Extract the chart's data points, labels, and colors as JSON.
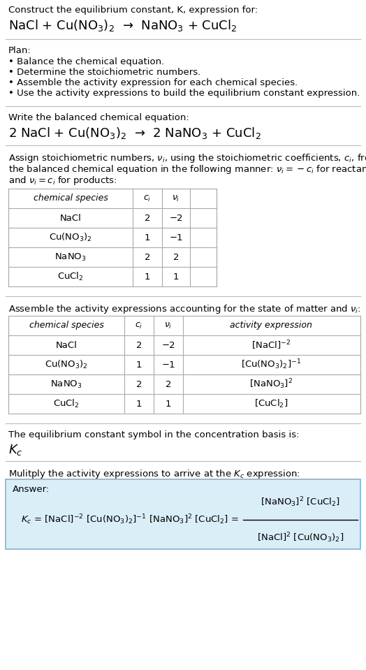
{
  "title_line1": "Construct the equilibrium constant, K, expression for:",
  "title_line2": "NaCl + Cu(NO$_3$)$_2$  →  NaNO$_3$ + CuCl$_2$",
  "plan_header": "Plan:",
  "plan_items": [
    "• Balance the chemical equation.",
    "• Determine the stoichiometric numbers.",
    "• Assemble the activity expression for each chemical species.",
    "• Use the activity expressions to build the equilibrium constant expression."
  ],
  "balanced_header": "Write the balanced chemical equation:",
  "balanced_eq": "2 NaCl + Cu(NO$_3$)$_2$  →  2 NaNO$_3$ + CuCl$_2$",
  "stoich_header_lines": [
    "Assign stoichiometric numbers, $\\nu_i$, using the stoichiometric coefficients, $c_i$, from",
    "the balanced chemical equation in the following manner: $\\nu_i = -c_i$ for reactants",
    "and $\\nu_i = c_i$ for products:"
  ],
  "table1_cols": [
    "chemical species",
    "$c_i$",
    "$\\nu_i$"
  ],
  "table1_rows": [
    [
      "NaCl",
      "2",
      "−2"
    ],
    [
      "Cu(NO$_3$)$_2$",
      "1",
      "−1"
    ],
    [
      "NaNO$_3$",
      "2",
      "2"
    ],
    [
      "CuCl$_2$",
      "1",
      "1"
    ]
  ],
  "activity_header": "Assemble the activity expressions accounting for the state of matter and $\\nu_i$:",
  "table2_cols": [
    "chemical species",
    "$c_i$",
    "$\\nu_i$",
    "activity expression"
  ],
  "table2_rows": [
    [
      "NaCl",
      "2",
      "−2",
      "[NaCl]$^{-2}$"
    ],
    [
      "Cu(NO$_3$)$_2$",
      "1",
      "−1",
      "[Cu(NO$_3$)$_2$]$^{-1}$"
    ],
    [
      "NaNO$_3$",
      "2",
      "2",
      "[NaNO$_3$]$^2$"
    ],
    [
      "CuCl$_2$",
      "1",
      "1",
      "[CuCl$_2$]"
    ]
  ],
  "kc_text1": "The equilibrium constant symbol in the concentration basis is:",
  "kc_symbol": "$K_c$",
  "multiply_header": "Mulitply the activity expressions to arrive at the $K_c$ expression:",
  "answer_label": "Answer:",
  "answer_eq_left": "$K_c$ = [NaCl]$^{-2}$ [Cu(NO$_3$)$_2$]$^{-1}$ [NaNO$_3$]$^2$ [CuCl$_2$] =",
  "answer_eq_num": "[NaNO$_3$]$^2$ [CuCl$_2$]",
  "answer_eq_den": "[NaCl]$^2$ [Cu(NO$_3$)$_2$]",
  "bg_color": "#ffffff",
  "table_border_color": "#aaaaaa",
  "answer_box_color": "#daeef8",
  "answer_box_border": "#7fb3d3",
  "text_color": "#000000",
  "font_size": 9.5,
  "title_font_size": 13,
  "header_font_size": 9.5
}
